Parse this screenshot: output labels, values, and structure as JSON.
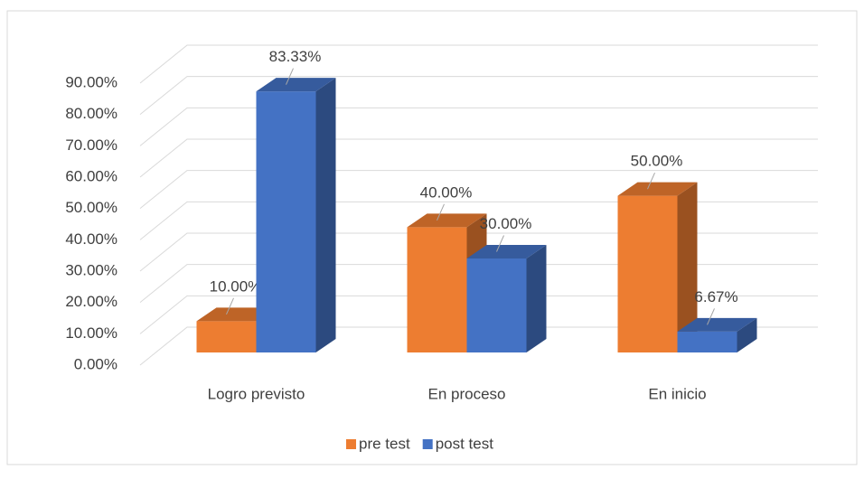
{
  "chart_data": {
    "type": "bar3d",
    "categories": [
      "Logro previsto",
      "En proceso",
      "En inicio"
    ],
    "series": [
      {
        "name": "pre test",
        "color": "#ed7d31",
        "values": [
          10,
          40,
          50
        ],
        "value_labels": [
          "10.00%",
          "40.00%",
          "50.00%"
        ]
      },
      {
        "name": "post test",
        "color": "#4472c4",
        "values": [
          83.33,
          30,
          6.67
        ],
        "value_labels": [
          "83.33%",
          "30.00%",
          "6.67%"
        ]
      }
    ],
    "ylim": [
      0,
      90
    ],
    "yticks": [
      {
        "value": 0,
        "label": "0.00%"
      },
      {
        "value": 10,
        "label": "10.00%"
      },
      {
        "value": 20,
        "label": "20.00%"
      },
      {
        "value": 30,
        "label": "30.00%"
      },
      {
        "value": 40,
        "label": "40.00%"
      },
      {
        "value": 50,
        "label": "50.00%"
      },
      {
        "value": 60,
        "label": "60.00%"
      },
      {
        "value": 70,
        "label": "70.00%"
      },
      {
        "value": 80,
        "label": "80.00%"
      },
      {
        "value": 90,
        "label": "90.00%"
      }
    ],
    "grid": true,
    "legend": "bottom"
  }
}
